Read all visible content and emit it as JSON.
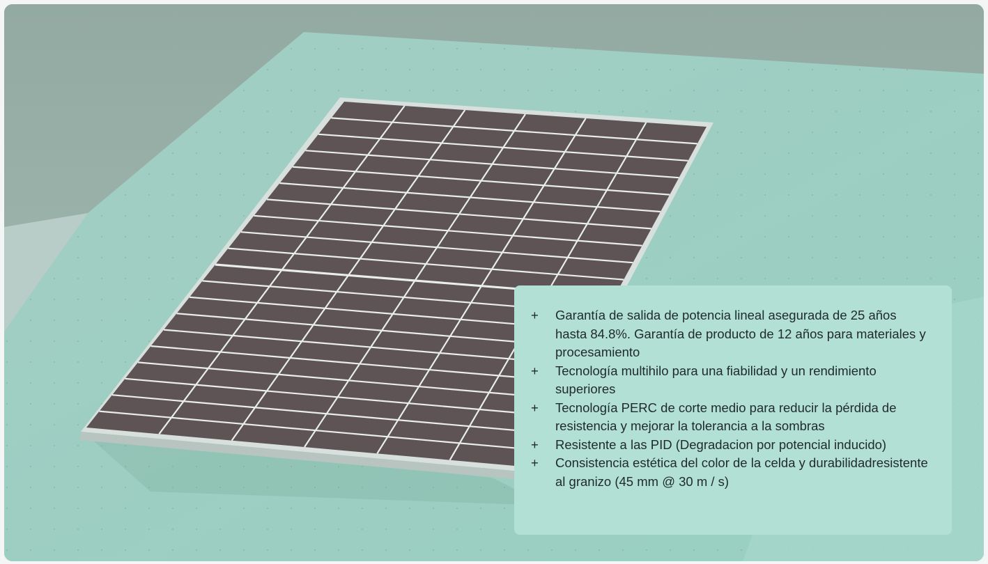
{
  "hero": {
    "image": "solar-panel-on-mint-surface"
  },
  "info_card": {
    "bullet_symbol": "+",
    "features": [
      "Garantía de salida de potencia lineal asegurada de 25 años hasta 84.8%. Garantía de producto de 12 años para materiales y procesamiento",
      "Tecnología multihilo para una fiabilidad y un rendimiento superiores",
      "Tecnología PERC de corte medio para reducir la pérdida de resistencia y mejorar la tolerancia a la sombras",
      "Resistente a las PID (Degradacion por potencial inducido)",
      "Consistencia estética del color de la celda y durabilidadresistente al granizo (45 mm @ 30 m / s)"
    ]
  },
  "colors": {
    "card_background": "#b2e0d5",
    "panel_cell": "#5e5455",
    "panel_frame": "#e6ecea"
  }
}
